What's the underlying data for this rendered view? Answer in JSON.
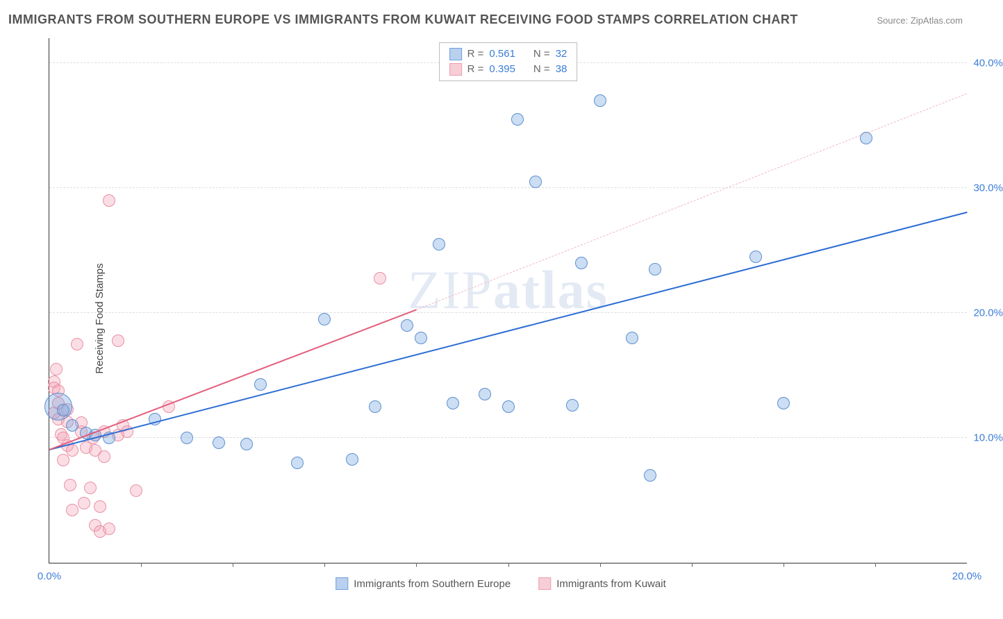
{
  "title": "IMMIGRANTS FROM SOUTHERN EUROPE VS IMMIGRANTS FROM KUWAIT RECEIVING FOOD STAMPS CORRELATION CHART",
  "source_prefix": "Source: ",
  "source_name": "ZipAtlas.com",
  "watermark_light": "ZIP",
  "watermark_bold": "atlas",
  "ylabel": "Receiving Food Stamps",
  "chart": {
    "type": "scatter",
    "xlim": [
      0,
      20
    ],
    "ylim": [
      0,
      42
    ],
    "xtick_labels": [
      "0.0%",
      "20.0%"
    ],
    "xtick_minor": [
      2,
      4,
      6,
      8,
      10,
      12,
      14,
      16,
      18
    ],
    "ytick_values": [
      10,
      20,
      30,
      40
    ],
    "ytick_labels": [
      "10.0%",
      "20.0%",
      "30.0%",
      "40.0%"
    ],
    "grid_color": "#dddddd",
    "background_color": "#ffffff",
    "axis_color": "#333333",
    "label_color": "#3b7dd8",
    "label_fontsize": 15,
    "title_color": "#555555",
    "title_fontsize": 18,
    "marker_radius": 9,
    "marker_stroke_width": 1,
    "series": [
      {
        "name": "Immigrants from Southern Europe",
        "color_fill": "rgba(108,160,220,0.35)",
        "color_stroke": "#5b8fd0",
        "swatch_fill": "#b9d0ee",
        "swatch_stroke": "#6fa0dd",
        "R": "0.561",
        "N": "32",
        "trend": {
          "x0": 0,
          "y0": 9.0,
          "x1": 20,
          "y1": 28.0,
          "color": "#2b6cd4",
          "dash": false,
          "width": 2
        },
        "points": [
          {
            "x": 0.2,
            "y": 12.5,
            "r": 20
          },
          {
            "x": 0.3,
            "y": 12.2
          },
          {
            "x": 0.5,
            "y": 11.0
          },
          {
            "x": 0.8,
            "y": 10.4
          },
          {
            "x": 1.0,
            "y": 10.2
          },
          {
            "x": 1.3,
            "y": 10.0
          },
          {
            "x": 2.3,
            "y": 11.5
          },
          {
            "x": 3.0,
            "y": 10.0
          },
          {
            "x": 3.7,
            "y": 9.6
          },
          {
            "x": 4.3,
            "y": 9.5
          },
          {
            "x": 4.6,
            "y": 14.3
          },
          {
            "x": 5.4,
            "y": 8.0
          },
          {
            "x": 6.0,
            "y": 19.5
          },
          {
            "x": 6.6,
            "y": 8.3
          },
          {
            "x": 7.8,
            "y": 19.0
          },
          {
            "x": 7.1,
            "y": 12.5
          },
          {
            "x": 8.1,
            "y": 18.0
          },
          {
            "x": 8.5,
            "y": 25.5
          },
          {
            "x": 8.8,
            "y": 12.8
          },
          {
            "x": 9.5,
            "y": 13.5
          },
          {
            "x": 10.0,
            "y": 12.5
          },
          {
            "x": 10.2,
            "y": 35.5
          },
          {
            "x": 10.6,
            "y": 30.5
          },
          {
            "x": 11.4,
            "y": 12.6
          },
          {
            "x": 11.6,
            "y": 24.0
          },
          {
            "x": 12.0,
            "y": 37.0
          },
          {
            "x": 12.7,
            "y": 18.0
          },
          {
            "x": 13.1,
            "y": 7.0
          },
          {
            "x": 13.2,
            "y": 23.5
          },
          {
            "x": 15.4,
            "y": 24.5
          },
          {
            "x": 16.0,
            "y": 12.8
          },
          {
            "x": 17.8,
            "y": 34.0
          }
        ]
      },
      {
        "name": "Immigrants from Kuwait",
        "color_fill": "rgba(244,160,180,0.35)",
        "color_stroke": "#e890a6",
        "swatch_fill": "#f7cdd6",
        "swatch_stroke": "#ec9db0",
        "R": "0.395",
        "N": "38",
        "trend_solid": {
          "x0": 0,
          "y0": 9.0,
          "x1": 8.0,
          "y1": 20.2,
          "color": "#e35d7c",
          "dash": false,
          "width": 2
        },
        "trend_dash": {
          "x0": 8.0,
          "y0": 20.2,
          "x1": 20,
          "y1": 37.5,
          "color": "#f0b8c4",
          "dash": true,
          "width": 1
        },
        "points": [
          {
            "x": 0.1,
            "y": 14.5
          },
          {
            "x": 0.1,
            "y": 14.0
          },
          {
            "x": 0.1,
            "y": 12.0
          },
          {
            "x": 0.15,
            "y": 15.5
          },
          {
            "x": 0.2,
            "y": 11.5
          },
          {
            "x": 0.2,
            "y": 12.8
          },
          {
            "x": 0.2,
            "y": 13.8
          },
          {
            "x": 0.25,
            "y": 10.3
          },
          {
            "x": 0.3,
            "y": 10.0
          },
          {
            "x": 0.3,
            "y": 8.2
          },
          {
            "x": 0.4,
            "y": 9.4
          },
          {
            "x": 0.4,
            "y": 11.3
          },
          {
            "x": 0.4,
            "y": 12.3
          },
          {
            "x": 0.45,
            "y": 6.2
          },
          {
            "x": 0.5,
            "y": 9.0
          },
          {
            "x": 0.5,
            "y": 4.2
          },
          {
            "x": 0.6,
            "y": 17.5
          },
          {
            "x": 0.7,
            "y": 10.5
          },
          {
            "x": 0.7,
            "y": 11.2
          },
          {
            "x": 0.75,
            "y": 4.8
          },
          {
            "x": 0.8,
            "y": 9.2
          },
          {
            "x": 0.9,
            "y": 6.0
          },
          {
            "x": 0.95,
            "y": 10.0
          },
          {
            "x": 1.0,
            "y": 9.0
          },
          {
            "x": 1.0,
            "y": 3.0
          },
          {
            "x": 1.1,
            "y": 4.5
          },
          {
            "x": 1.1,
            "y": 2.5
          },
          {
            "x": 1.2,
            "y": 10.5
          },
          {
            "x": 1.2,
            "y": 8.5
          },
          {
            "x": 1.3,
            "y": 29.0
          },
          {
            "x": 1.3,
            "y": 2.7
          },
          {
            "x": 1.5,
            "y": 17.8
          },
          {
            "x": 1.5,
            "y": 10.2
          },
          {
            "x": 1.6,
            "y": 11.0
          },
          {
            "x": 1.7,
            "y": 10.5
          },
          {
            "x": 1.9,
            "y": 5.8
          },
          {
            "x": 2.6,
            "y": 12.5
          },
          {
            "x": 7.2,
            "y": 22.8
          }
        ]
      }
    ],
    "legend_top": {
      "R_label": "R  =",
      "N_label": "N  ="
    },
    "legend_bottom": [
      "Immigrants from Southern Europe",
      "Immigrants from Kuwait"
    ]
  }
}
